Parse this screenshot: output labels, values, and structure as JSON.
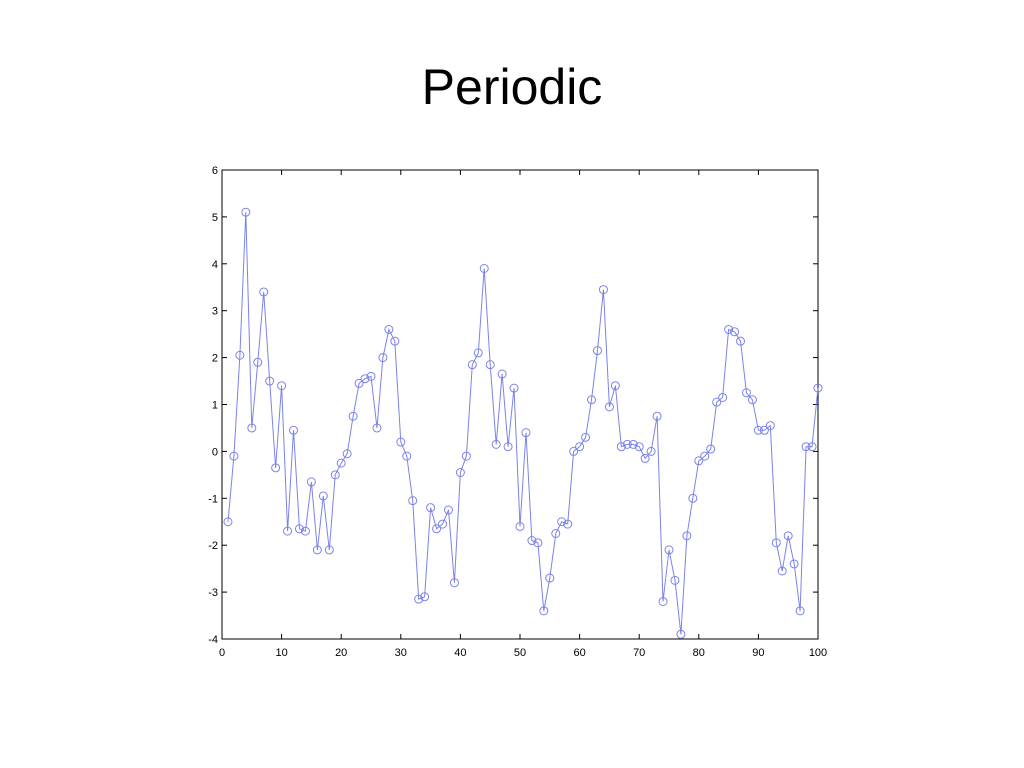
{
  "slide": {
    "title": "Periodic"
  },
  "chart_data": {
    "type": "line",
    "title": "",
    "xlabel": "",
    "ylabel": "",
    "xlim": [
      0,
      100
    ],
    "ylim": [
      -4,
      6
    ],
    "xticks": [
      0,
      10,
      20,
      30,
      40,
      50,
      60,
      70,
      80,
      90,
      100
    ],
    "yticks": [
      -4,
      -3,
      -2,
      -1,
      0,
      1,
      2,
      3,
      4,
      5,
      6
    ],
    "grid": false,
    "marker": "circle",
    "line_color": "#7b83ea",
    "series": [
      {
        "x": [
          1,
          2,
          3,
          4,
          5,
          6,
          7,
          8,
          9,
          10,
          11,
          12,
          13,
          14,
          15,
          16,
          17,
          18,
          19,
          20,
          21,
          22,
          23,
          24,
          25,
          26,
          27,
          28,
          29,
          30,
          31,
          32,
          33,
          34,
          35,
          36,
          37,
          38,
          39,
          40,
          41,
          42,
          43,
          44,
          45,
          46,
          47,
          48,
          49,
          50,
          51,
          52,
          53,
          54,
          55,
          56,
          57,
          58,
          59,
          60,
          61,
          62,
          63,
          64,
          65,
          66,
          67,
          68,
          69,
          70,
          71,
          72,
          73,
          74,
          75,
          76,
          77,
          78,
          79,
          80,
          81,
          82,
          83,
          84,
          85,
          86,
          87,
          88,
          89,
          90,
          91,
          92,
          93,
          94,
          95,
          96,
          97,
          98,
          99,
          100
        ],
        "values": [
          -1.5,
          -0.1,
          2.05,
          5.1,
          0.5,
          1.9,
          3.4,
          1.5,
          -0.35,
          1.4,
          -1.7,
          0.45,
          -1.65,
          -1.7,
          -0.65,
          -2.1,
          -0.95,
          -2.1,
          -0.5,
          -0.25,
          -0.05,
          0.75,
          1.45,
          1.55,
          1.6,
          0.5,
          2.0,
          2.6,
          2.35,
          0.2,
          -0.1,
          -1.05,
          -3.15,
          -3.1,
          -1.2,
          -1.65,
          -1.55,
          -1.25,
          -2.8,
          -0.45,
          -0.1,
          1.85,
          2.1,
          3.9,
          1.85,
          0.15,
          1.65,
          0.1,
          1.35,
          -1.6,
          0.4,
          -1.9,
          -1.95,
          -3.4,
          -2.7,
          -1.75,
          -1.5,
          -1.55,
          0.0,
          0.1,
          0.3,
          1.1,
          2.15,
          3.45,
          0.95,
          1.4,
          0.1,
          0.15,
          0.15,
          0.1,
          -0.15,
          0.0,
          0.75,
          -3.2,
          -2.1,
          -2.75,
          -3.9,
          -1.8,
          -1.0,
          -0.2,
          -0.1,
          0.05,
          1.05,
          1.15,
          2.6,
          2.55,
          2.35,
          1.25,
          1.1,
          0.45,
          0.45,
          0.55,
          -1.95,
          -2.55,
          -1.8,
          -2.4,
          -3.4,
          0.1,
          0.1,
          1.35
        ]
      }
    ]
  }
}
